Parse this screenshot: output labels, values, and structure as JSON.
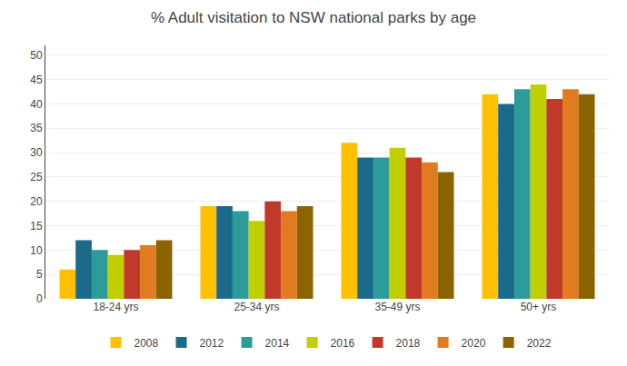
{
  "chart_data": {
    "type": "bar",
    "title": "% Adult visitation to NSW national parks by age",
    "categories": [
      "18-24 yrs",
      "25-34 yrs",
      "35-49 yrs",
      "50+ yrs"
    ],
    "series": [
      {
        "name": "2008",
        "color": "#FFC000",
        "values": [
          6,
          19,
          32,
          42
        ]
      },
      {
        "name": "2012",
        "color": "#1A6B8A",
        "values": [
          12,
          19,
          29,
          40
        ]
      },
      {
        "name": "2014",
        "color": "#2E9B9B",
        "values": [
          10,
          18,
          29,
          43
        ]
      },
      {
        "name": "2016",
        "color": "#BFCF00",
        "values": [
          9,
          16,
          31,
          44
        ]
      },
      {
        "name": "2018",
        "color": "#C0392B",
        "values": [
          10,
          20,
          29,
          41
        ]
      },
      {
        "name": "2020",
        "color": "#E07B20",
        "values": [
          11,
          18,
          28,
          43
        ]
      },
      {
        "name": "2022",
        "color": "#8B6300",
        "values": [
          12,
          19,
          26,
          42
        ]
      }
    ],
    "ylim": [
      0,
      52
    ],
    "yticks": [
      0,
      5,
      10,
      15,
      20,
      25,
      30,
      35,
      40,
      45,
      50
    ],
    "grid": true,
    "legend": "bottom"
  }
}
